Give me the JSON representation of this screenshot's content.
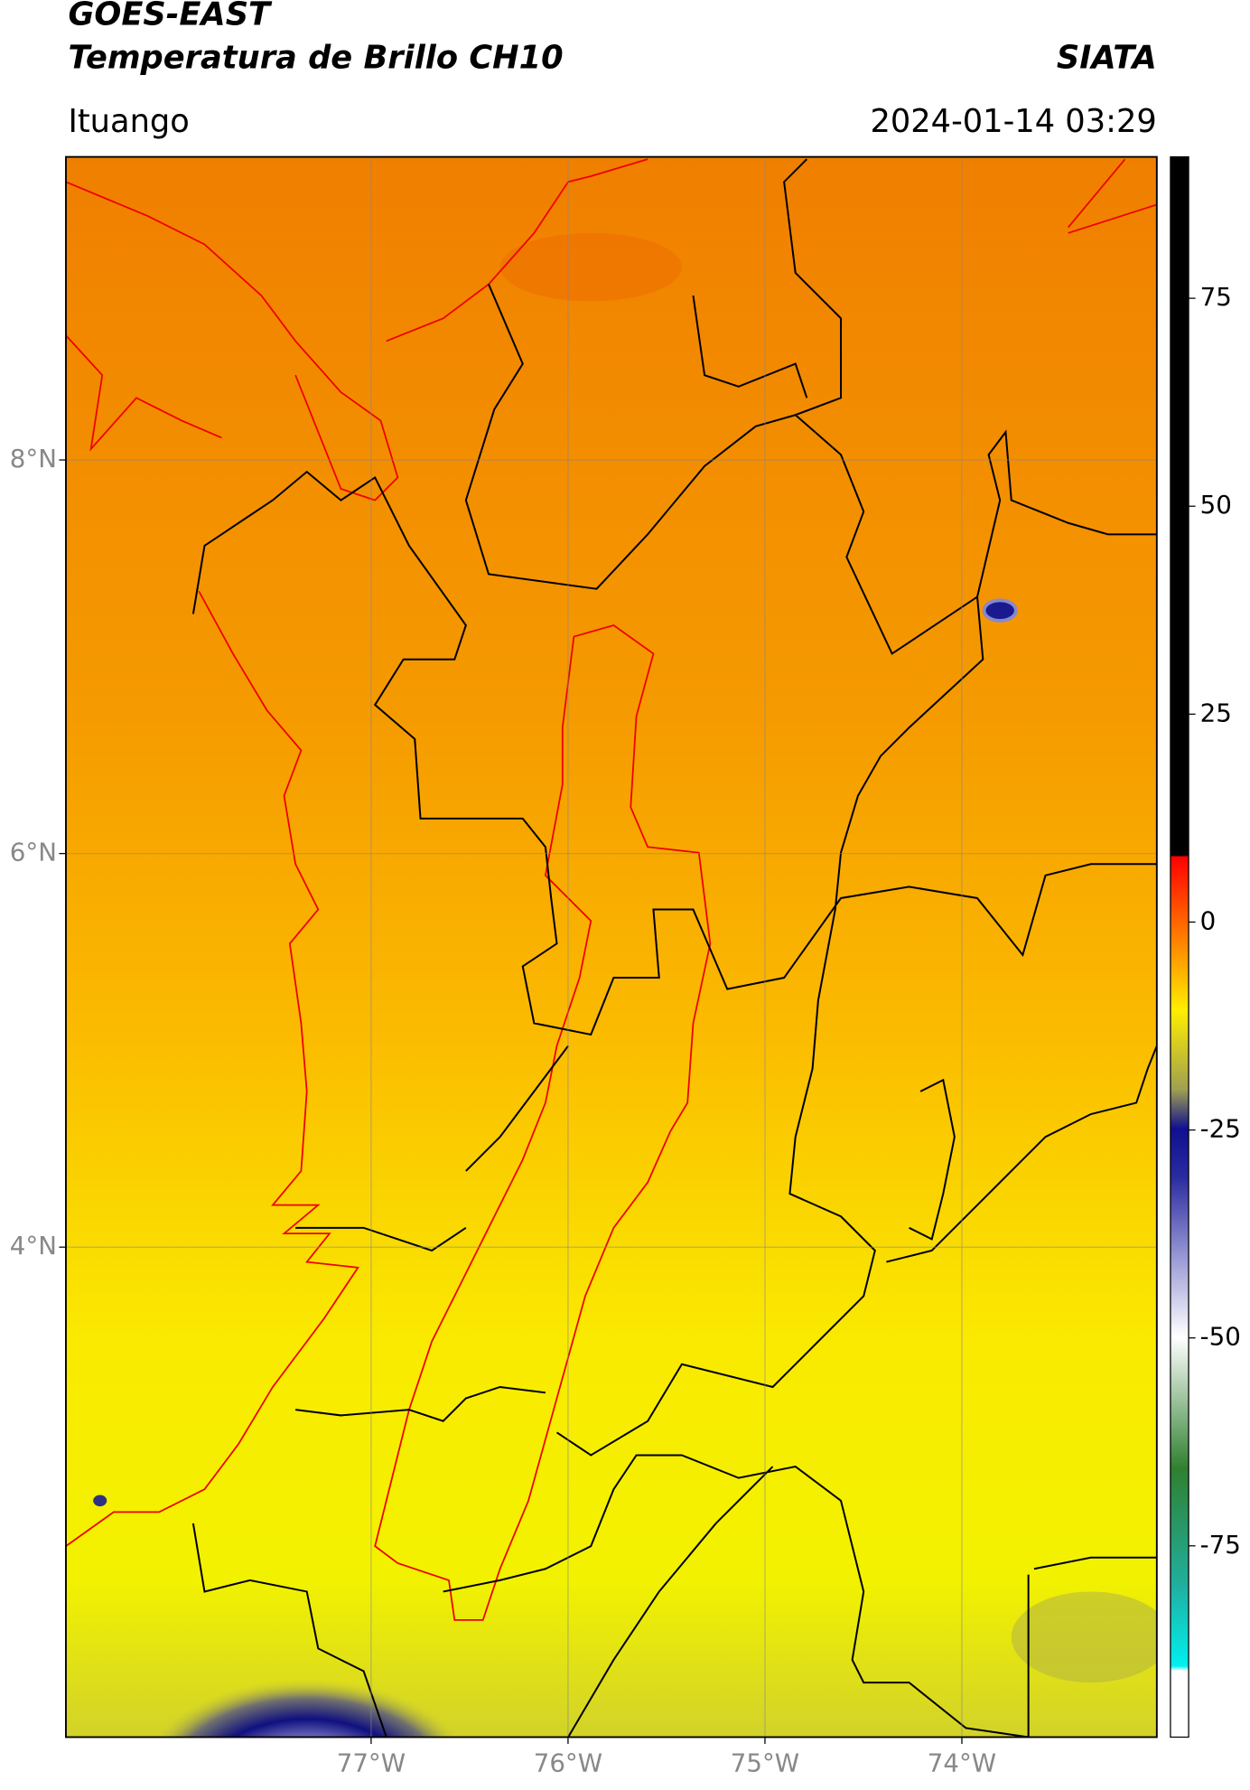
{
  "header": {
    "satellite": "GOES-EAST",
    "product": "Temperatura de Brillo CH10",
    "brand": "SIATA",
    "region": "Ituango",
    "timestamp": "2024-01-14 03:29"
  },
  "map": {
    "xlim": [
      -78.55,
      -73.01
    ],
    "ylim": [
      1.51,
      9.54
    ],
    "xticks": [
      {
        "value": -77,
        "label": "77°W"
      },
      {
        "value": -76,
        "label": "76°W"
      },
      {
        "value": -75,
        "label": "75°W"
      },
      {
        "value": -74,
        "label": "74°W"
      }
    ],
    "yticks": [
      {
        "value": 8,
        "label": "8°N"
      },
      {
        "value": 6,
        "label": "6°N"
      },
      {
        "value": 4,
        "label": "4°N"
      }
    ],
    "grid": true
  },
  "colorbar": {
    "lim": [
      -98,
      92
    ],
    "ticks": [
      75,
      50,
      25,
      0,
      -25,
      -50,
      -75
    ]
  }
}
